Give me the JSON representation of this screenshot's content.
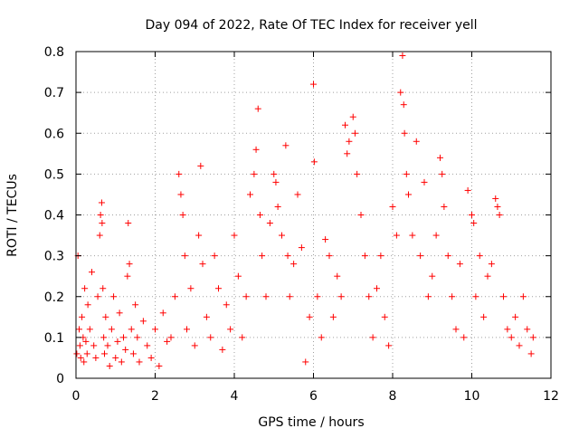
{
  "chart_data": {
    "type": "scatter",
    "title": "Day 094 of 2022, Rate Of TEC Index for receiver yell",
    "xlabel": "GPS time / hours",
    "ylabel": "ROTI / TECUs",
    "xlim": [
      0,
      12
    ],
    "ylim": [
      0,
      0.8
    ],
    "x_ticks": [
      0,
      2,
      4,
      6,
      8,
      10,
      12
    ],
    "x_tick_labels": [
      "0",
      "2",
      "4",
      "6",
      "8",
      "10",
      "12"
    ],
    "y_ticks": [
      0,
      0.1,
      0.2,
      0.3,
      0.4,
      0.5,
      0.6,
      0.7,
      0.8
    ],
    "y_tick_labels": [
      "0",
      "0.1",
      "0.2",
      "0.3",
      "0.4",
      "0.5",
      "0.6",
      "0.7",
      "0.8"
    ],
    "grid": true,
    "marker": "plus",
    "color": "#ff0000",
    "legend": "none",
    "series": [
      {
        "x": [
          0.02,
          0.05,
          0.08,
          0.1,
          0.12,
          0.15,
          0.18,
          0.2,
          0.22,
          0.25,
          0.28,
          0.3,
          0.35,
          0.4,
          0.45,
          0.5,
          0.55,
          0.6,
          0.62,
          0.65,
          0.66,
          0.68,
          0.7,
          0.72,
          0.75,
          0.8,
          0.85,
          0.9,
          0.95,
          1.0,
          1.05,
          1.1,
          1.15,
          1.2,
          1.25,
          1.3,
          1.32,
          1.35,
          1.4,
          1.45,
          1.5,
          1.55,
          1.6,
          1.7,
          1.8,
          1.9,
          2.0,
          2.1,
          2.2,
          2.3,
          2.4,
          2.5,
          2.6,
          2.65,
          2.7,
          2.75,
          2.8,
          2.9,
          3.0,
          3.1,
          3.15,
          3.2,
          3.3,
          3.4,
          3.5,
          3.6,
          3.7,
          3.8,
          3.9,
          4.0,
          4.1,
          4.2,
          4.3,
          4.4,
          4.5,
          4.55,
          4.6,
          4.65,
          4.7,
          4.8,
          4.9,
          5.0,
          5.05,
          5.1,
          5.2,
          5.3,
          5.35,
          5.4,
          5.5,
          5.6,
          5.7,
          5.8,
          5.9,
          6.0,
          6.02,
          6.1,
          6.2,
          6.3,
          6.4,
          6.5,
          6.6,
          6.7,
          6.8,
          6.85,
          6.9,
          7.0,
          7.05,
          7.1,
          7.2,
          7.3,
          7.4,
          7.5,
          7.6,
          7.7,
          7.8,
          7.9,
          8.0,
          8.1,
          8.2,
          8.25,
          8.28,
          8.3,
          8.35,
          8.4,
          8.5,
          8.6,
          8.7,
          8.8,
          8.9,
          9.0,
          9.1,
          9.2,
          9.25,
          9.3,
          9.4,
          9.5,
          9.6,
          9.7,
          9.8,
          9.9,
          10.0,
          10.05,
          10.1,
          10.2,
          10.3,
          10.4,
          10.5,
          10.6,
          10.65,
          10.7,
          10.8,
          10.9,
          11.0,
          11.1,
          11.2,
          11.3,
          11.4,
          11.5,
          11.55
        ],
        "y": [
          0.06,
          0.3,
          0.12,
          0.08,
          0.05,
          0.15,
          0.1,
          0.04,
          0.22,
          0.09,
          0.06,
          0.18,
          0.12,
          0.26,
          0.08,
          0.05,
          0.2,
          0.35,
          0.4,
          0.43,
          0.38,
          0.22,
          0.1,
          0.06,
          0.15,
          0.08,
          0.03,
          0.12,
          0.2,
          0.05,
          0.09,
          0.16,
          0.04,
          0.1,
          0.07,
          0.25,
          0.38,
          0.28,
          0.12,
          0.06,
          0.18,
          0.1,
          0.04,
          0.14,
          0.08,
          0.05,
          0.12,
          0.03,
          0.16,
          0.09,
          0.1,
          0.2,
          0.5,
          0.45,
          0.4,
          0.3,
          0.12,
          0.22,
          0.08,
          0.35,
          0.52,
          0.28,
          0.15,
          0.1,
          0.3,
          0.22,
          0.07,
          0.18,
          0.12,
          0.35,
          0.25,
          0.1,
          0.2,
          0.45,
          0.5,
          0.56,
          0.66,
          0.4,
          0.3,
          0.2,
          0.38,
          0.5,
          0.48,
          0.42,
          0.35,
          0.57,
          0.3,
          0.2,
          0.28,
          0.45,
          0.32,
          0.04,
          0.15,
          0.72,
          0.53,
          0.2,
          0.1,
          0.34,
          0.3,
          0.15,
          0.25,
          0.2,
          0.62,
          0.55,
          0.58,
          0.64,
          0.6,
          0.5,
          0.4,
          0.3,
          0.2,
          0.1,
          0.22,
          0.3,
          0.15,
          0.08,
          0.42,
          0.35,
          0.7,
          0.79,
          0.67,
          0.6,
          0.5,
          0.45,
          0.35,
          0.58,
          0.3,
          0.48,
          0.2,
          0.25,
          0.35,
          0.54,
          0.5,
          0.42,
          0.3,
          0.2,
          0.12,
          0.28,
          0.1,
          0.46,
          0.4,
          0.38,
          0.2,
          0.3,
          0.15,
          0.25,
          0.28,
          0.44,
          0.42,
          0.4,
          0.2,
          0.12,
          0.1,
          0.15,
          0.08,
          0.2,
          0.12,
          0.06,
          0.1
        ]
      }
    ]
  }
}
